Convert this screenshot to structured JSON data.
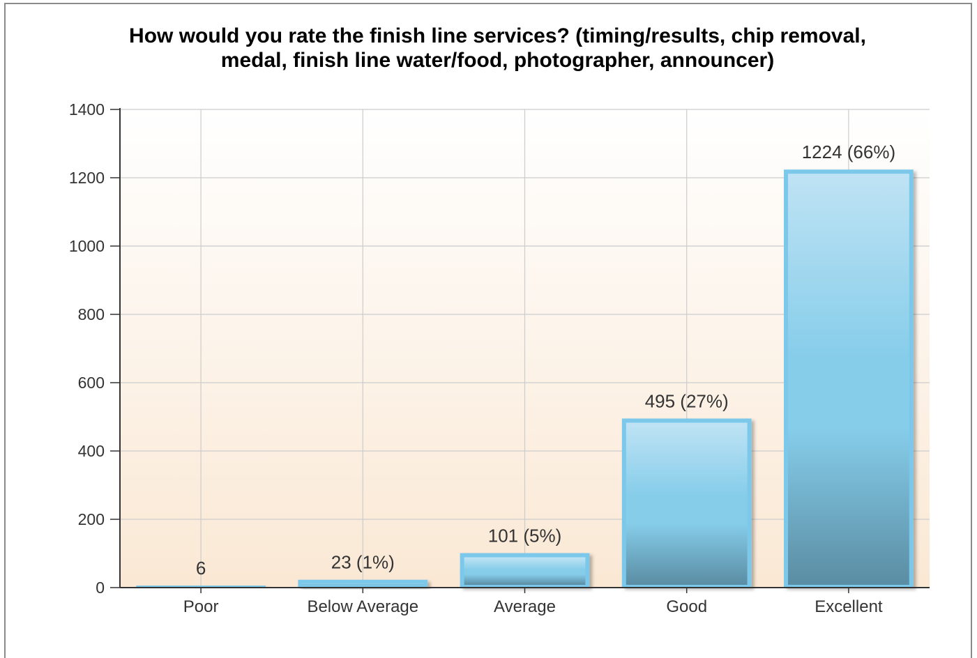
{
  "chart_data": {
    "type": "bar",
    "title_lines": [
      "How would you rate the finish line services? (timing/results, chip removal,",
      "medal, finish line water/food, photographer, announcer)"
    ],
    "categories": [
      "Poor",
      "Below Average",
      "Average",
      "Good",
      "Excellent"
    ],
    "values": [
      6,
      23,
      101,
      495,
      1224
    ],
    "data_labels": [
      "6",
      "23 (1%)",
      "101 (5%)",
      "495 (27%)",
      "1224 (66%)"
    ],
    "ylim": [
      0,
      1400
    ],
    "yticks": [
      "0",
      "200",
      "400",
      "600",
      "800",
      "1000",
      "1200",
      "1400"
    ],
    "xlabel": "",
    "ylabel": "",
    "grid": true,
    "legend": "none",
    "colors": {
      "bar_top": "#bfe3f4",
      "bar_mid": "#86cdea",
      "bar_bottom": "#5a8da3",
      "bar_border": "#7cc8ea",
      "bg_top": "#ffffff",
      "bg_bottom": "#fae8d4",
      "grid": "#cccccc",
      "axis": "#333333",
      "text": "#333333"
    }
  }
}
